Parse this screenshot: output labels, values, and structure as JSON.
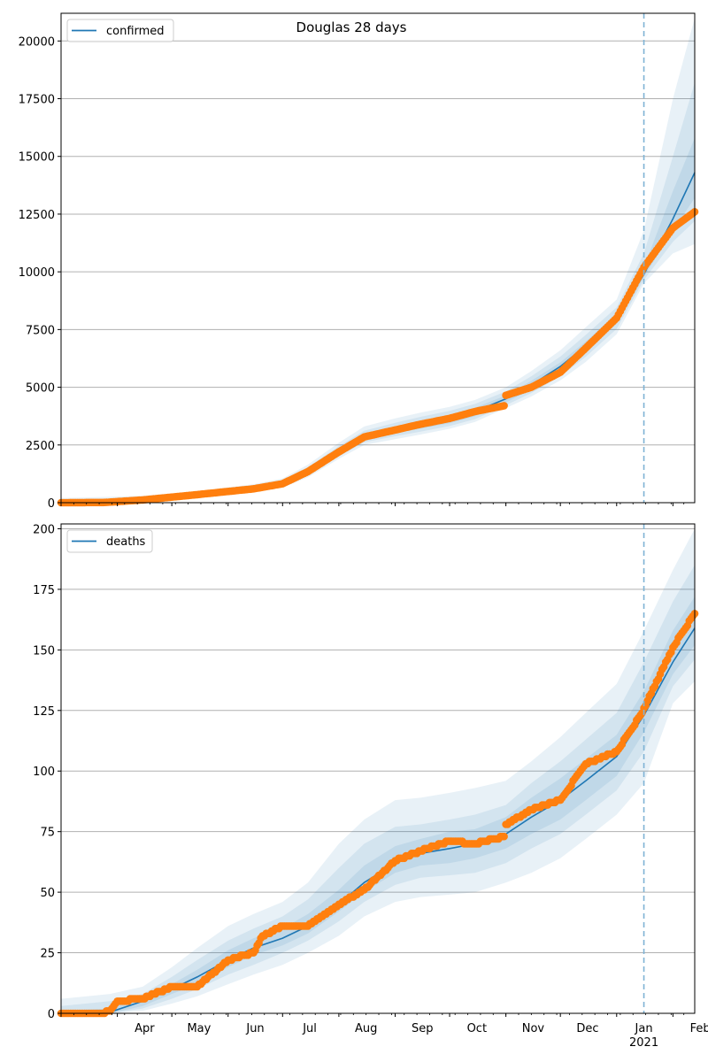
{
  "figure": {
    "title": "Douglas 28 days",
    "forecast_start": "2021-01-16"
  },
  "colors": {
    "model_line": "#1f77b4",
    "observed_points": "#ff7f0e",
    "band": "#1f77b4",
    "grid": "#b0b0b0",
    "forecast_line": "#7fb3d5"
  },
  "chart_data": [
    {
      "type": "line",
      "legend_label": "confirmed",
      "legend_position": "upper-left",
      "grid": "horizontal",
      "xlim": [
        "2020-03-01",
        "2021-02-13"
      ],
      "ylim": [
        0,
        21200
      ],
      "yticks": [
        0,
        2500,
        5000,
        7500,
        10000,
        12500,
        15000,
        17500,
        20000
      ],
      "model_median": {
        "x": [
          "2020-03-01",
          "2020-03-25",
          "2020-04-15",
          "2020-05-15",
          "2020-06-15",
          "2020-07-01",
          "2020-07-15",
          "2020-08-01",
          "2020-08-15",
          "2020-09-01",
          "2020-09-15",
          "2020-10-01",
          "2020-10-15",
          "2020-11-01",
          "2020-11-15",
          "2020-12-01",
          "2020-12-15",
          "2021-01-01",
          "2021-01-16",
          "2021-02-01",
          "2021-02-13"
        ],
        "y": [
          0,
          10,
          120,
          350,
          600,
          820,
          1350,
          2200,
          2850,
          3150,
          3400,
          3650,
          3950,
          4500,
          5100,
          5900,
          6800,
          8000,
          9900,
          12300,
          14300
        ]
      },
      "bands": [
        {
          "lower": [
            0,
            0,
            60,
            250,
            480,
            650,
            1100,
            1900,
            2500,
            2750,
            2950,
            3200,
            3500,
            4100,
            4600,
            5300,
            6100,
            7300,
            9500,
            10800,
            11200
          ],
          "upper": [
            200,
            250,
            300,
            500,
            800,
            1050,
            1650,
            2600,
            3300,
            3650,
            3900,
            4150,
            4450,
            5000,
            5700,
            6600,
            7600,
            8800,
            11800,
            17500,
            21000
          ]
        },
        {
          "lower": [
            0,
            0,
            80,
            280,
            520,
            700,
            1180,
            2000,
            2620,
            2880,
            3080,
            3320,
            3620,
            4220,
            4750,
            5480,
            6320,
            7530,
            9650,
            11300,
            12200
          ],
          "upper": [
            120,
            160,
            220,
            440,
            720,
            960,
            1540,
            2450,
            3120,
            3460,
            3720,
            3980,
            4280,
            4820,
            5480,
            6330,
            7270,
            8460,
            10800,
            15000,
            18200
          ]
        },
        {
          "lower": [
            0,
            0,
            100,
            310,
            560,
            750,
            1260,
            2100,
            2740,
            3010,
            3210,
            3440,
            3740,
            4340,
            4900,
            5660,
            6540,
            7760,
            9780,
            11800,
            13200
          ],
          "upper": [
            50,
            80,
            160,
            390,
            660,
            880,
            1440,
            2320,
            2970,
            3290,
            3550,
            3810,
            4110,
            4650,
            5280,
            6080,
            6980,
            8200,
            10200,
            13500,
            15800
          ]
        }
      ],
      "observed": {
        "x": [
          "2020-03-01",
          "2020-03-25",
          "2020-04-15",
          "2020-05-15",
          "2020-06-15",
          "2020-07-01",
          "2020-07-15",
          "2020-08-01",
          "2020-08-15",
          "2020-09-01",
          "2020-09-15",
          "2020-10-01",
          "2020-10-15",
          "2020-10-31",
          "2020-11-01",
          "2020-11-15",
          "2020-12-01",
          "2020-12-15",
          "2021-01-01",
          "2021-01-16",
          "2021-02-01",
          "2021-02-13"
        ],
        "y": [
          0,
          10,
          120,
          350,
          600,
          820,
          1350,
          2200,
          2850,
          3150,
          3400,
          3650,
          3950,
          4200,
          4650,
          5000,
          5650,
          6700,
          8000,
          10200,
          11900,
          12600
        ]
      }
    },
    {
      "type": "line",
      "legend_label": "deaths",
      "legend_position": "upper-left",
      "grid": "horizontal",
      "xlim": [
        "2020-03-01",
        "2021-02-13"
      ],
      "ylim": [
        0,
        202
      ],
      "yticks": [
        0,
        25,
        50,
        75,
        100,
        125,
        150,
        175,
        200
      ],
      "xtick_labels": [
        "Apr",
        "May",
        "Jun",
        "Jul",
        "Aug",
        "Sep",
        "Oct",
        "Nov",
        "Dec",
        "Jan",
        "Feb"
      ],
      "xtick_year": "2021",
      "model_median": {
        "x": [
          "2020-03-01",
          "2020-03-28",
          "2020-04-15",
          "2020-05-01",
          "2020-05-15",
          "2020-06-01",
          "2020-06-15",
          "2020-07-01",
          "2020-07-15",
          "2020-08-01",
          "2020-08-15",
          "2020-09-01",
          "2020-09-15",
          "2020-10-01",
          "2020-10-15",
          "2020-11-01",
          "2020-11-15",
          "2020-12-01",
          "2020-12-15",
          "2021-01-01",
          "2021-01-16",
          "2021-02-01",
          "2021-02-13"
        ],
        "y": [
          0,
          0.5,
          5,
          10,
          15,
          22,
          27,
          31,
          36,
          45,
          54,
          62,
          66,
          68,
          70,
          74,
          81,
          88,
          96,
          106,
          123,
          145,
          159
        ]
      },
      "bands": [
        {
          "lower": [
            0,
            0,
            1,
            4,
            7,
            12,
            16,
            20,
            25,
            32,
            40,
            46,
            48,
            49,
            50,
            54,
            58,
            64,
            72,
            82,
            95,
            128,
            137
          ],
          "upper": [
            6,
            8,
            11,
            19,
            27,
            36,
            41,
            46,
            54,
            70,
            80,
            88,
            89,
            91,
            93,
            96,
            104,
            114,
            124,
            136,
            158,
            183,
            200
          ]
        },
        {
          "lower": [
            0,
            0,
            2,
            6,
            10,
            16,
            20,
            25,
            30,
            38,
            46,
            53,
            56,
            57,
            58,
            62,
            68,
            74,
            82,
            92,
            108,
            135,
            146
          ],
          "upper": [
            3,
            5,
            8,
            15,
            22,
            30,
            35,
            40,
            47,
            60,
            70,
            77,
            78,
            80,
            82,
            86,
            95,
            104,
            113,
            124,
            145,
            170,
            185
          ]
        },
        {
          "lower": [
            0,
            0,
            3,
            8,
            12,
            19,
            24,
            28,
            33,
            42,
            50,
            58,
            61,
            62,
            64,
            68,
            74,
            80,
            88,
            98,
            116,
            140,
            152
          ],
          "upper": [
            1,
            2,
            7,
            12,
            18,
            26,
            31,
            35,
            41,
            51,
            61,
            69,
            72,
            75,
            76,
            81,
            89,
            97,
            105,
            115,
            133,
            158,
            172
          ]
        }
      ],
      "observed": {
        "x": [
          "2020-03-01",
          "2020-03-24",
          "2020-03-28",
          "2020-04-01",
          "2020-04-15",
          "2020-05-01",
          "2020-05-15",
          "2020-06-01",
          "2020-06-15",
          "2020-06-20",
          "2020-07-01",
          "2020-07-15",
          "2020-08-01",
          "2020-08-15",
          "2020-09-01",
          "2020-09-15",
          "2020-10-01",
          "2020-10-15",
          "2020-10-31",
          "2020-11-01",
          "2020-11-15",
          "2020-12-01",
          "2020-12-15",
          "2021-01-01",
          "2021-01-15",
          "2021-01-18",
          "2021-02-01",
          "2021-02-13"
        ],
        "y": [
          0,
          0,
          1,
          5,
          6,
          11,
          11,
          22,
          25,
          32,
          36,
          36,
          45,
          51,
          63,
          67,
          71,
          70,
          73,
          78,
          84,
          88,
          103,
          108,
          124,
          129,
          151,
          165
        ]
      }
    }
  ]
}
